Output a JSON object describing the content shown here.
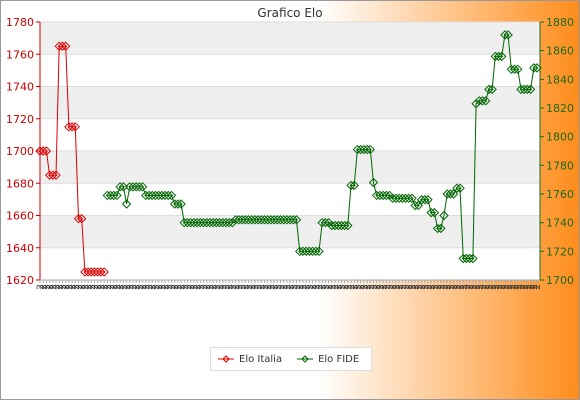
{
  "chart_data": {
    "type": "line",
    "title": "Grafico Elo",
    "grid": true,
    "legend_position": "bottom",
    "colors": {
      "elo_italia": "#dd0000",
      "elo_fide": "#006600",
      "left_axis": "#cc0000",
      "right_axis": "#1b6b1b",
      "band": "#efefef",
      "bg_left": "#ffffff",
      "bg_right": "#ff8c1a"
    },
    "x_tick_label_prefix": "2",
    "left_axis": {
      "ylim": [
        1620,
        1780
      ],
      "ticks": [
        1620,
        1640,
        1660,
        1680,
        1700,
        1720,
        1740,
        1760,
        1780
      ]
    },
    "right_axis": {
      "ylim": [
        1700,
        1880
      ],
      "ticks": [
        1700,
        1720,
        1740,
        1760,
        1780,
        1800,
        1820,
        1840,
        1860,
        1880
      ]
    },
    "series": [
      {
        "name": "Elo Italia",
        "axis": "left",
        "points": [
          {
            "x": 0,
            "y": 1700
          },
          {
            "x": 1,
            "y": 1700
          },
          {
            "x": 2,
            "y": 1700
          },
          {
            "x": 3,
            "y": 1685
          },
          {
            "x": 4,
            "y": 1685
          },
          {
            "x": 5,
            "y": 1685
          },
          {
            "x": 6,
            "y": 1765
          },
          {
            "x": 7,
            "y": 1765
          },
          {
            "x": 8,
            "y": 1765
          },
          {
            "x": 9,
            "y": 1715
          },
          {
            "x": 10,
            "y": 1715
          },
          {
            "x": 11,
            "y": 1715
          },
          {
            "x": 12,
            "y": 1658
          },
          {
            "x": 13,
            "y": 1658
          },
          {
            "x": 14,
            "y": 1625
          },
          {
            "x": 15,
            "y": 1625
          },
          {
            "x": 16,
            "y": 1625
          },
          {
            "x": 17,
            "y": 1625
          },
          {
            "x": 18,
            "y": 1625
          },
          {
            "x": 19,
            "y": 1625
          },
          {
            "x": 20,
            "y": 1625
          }
        ]
      },
      {
        "name": "Elo FIDE",
        "axis": "right",
        "points": [
          {
            "x": 21,
            "y": 1759
          },
          {
            "x": 22,
            "y": 1759
          },
          {
            "x": 23,
            "y": 1759
          },
          {
            "x": 24,
            "y": 1759
          },
          {
            "x": 25,
            "y": 1765
          },
          {
            "x": 26,
            "y": 1765
          },
          {
            "x": 27,
            "y": 1753
          },
          {
            "x": 28,
            "y": 1765
          },
          {
            "x": 29,
            "y": 1765
          },
          {
            "x": 30,
            "y": 1765
          },
          {
            "x": 31,
            "y": 1765
          },
          {
            "x": 32,
            "y": 1765
          },
          {
            "x": 33,
            "y": 1759
          },
          {
            "x": 34,
            "y": 1759
          },
          {
            "x": 35,
            "y": 1759
          },
          {
            "x": 36,
            "y": 1759
          },
          {
            "x": 37,
            "y": 1759
          },
          {
            "x": 38,
            "y": 1759
          },
          {
            "x": 39,
            "y": 1759
          },
          {
            "x": 40,
            "y": 1759
          },
          {
            "x": 41,
            "y": 1759
          },
          {
            "x": 42,
            "y": 1753
          },
          {
            "x": 43,
            "y": 1753
          },
          {
            "x": 44,
            "y": 1753
          },
          {
            "x": 45,
            "y": 1740
          },
          {
            "x": 46,
            "y": 1740
          },
          {
            "x": 47,
            "y": 1740
          },
          {
            "x": 48,
            "y": 1740
          },
          {
            "x": 49,
            "y": 1740
          },
          {
            "x": 50,
            "y": 1740
          },
          {
            "x": 51,
            "y": 1740
          },
          {
            "x": 52,
            "y": 1740
          },
          {
            "x": 53,
            "y": 1740
          },
          {
            "x": 54,
            "y": 1740
          },
          {
            "x": 55,
            "y": 1740
          },
          {
            "x": 56,
            "y": 1740
          },
          {
            "x": 57,
            "y": 1740
          },
          {
            "x": 58,
            "y": 1740
          },
          {
            "x": 59,
            "y": 1740
          },
          {
            "x": 60,
            "y": 1740
          },
          {
            "x": 61,
            "y": 1742
          },
          {
            "x": 62,
            "y": 1742
          },
          {
            "x": 63,
            "y": 1742
          },
          {
            "x": 64,
            "y": 1742
          },
          {
            "x": 65,
            "y": 1742
          },
          {
            "x": 66,
            "y": 1742
          },
          {
            "x": 67,
            "y": 1742
          },
          {
            "x": 68,
            "y": 1742
          },
          {
            "x": 69,
            "y": 1742
          },
          {
            "x": 70,
            "y": 1742
          },
          {
            "x": 71,
            "y": 1742
          },
          {
            "x": 72,
            "y": 1742
          },
          {
            "x": 73,
            "y": 1742
          },
          {
            "x": 74,
            "y": 1742
          },
          {
            "x": 75,
            "y": 1742
          },
          {
            "x": 76,
            "y": 1742
          },
          {
            "x": 77,
            "y": 1742
          },
          {
            "x": 78,
            "y": 1742
          },
          {
            "x": 79,
            "y": 1742
          },
          {
            "x": 80,
            "y": 1742
          },
          {
            "x": 81,
            "y": 1720
          },
          {
            "x": 82,
            "y": 1720
          },
          {
            "x": 83,
            "y": 1720
          },
          {
            "x": 84,
            "y": 1720
          },
          {
            "x": 85,
            "y": 1720
          },
          {
            "x": 86,
            "y": 1720
          },
          {
            "x": 87,
            "y": 1720
          },
          {
            "x": 88,
            "y": 1740
          },
          {
            "x": 89,
            "y": 1740
          },
          {
            "x": 90,
            "y": 1740
          },
          {
            "x": 91,
            "y": 1738
          },
          {
            "x": 92,
            "y": 1738
          },
          {
            "x": 93,
            "y": 1738
          },
          {
            "x": 94,
            "y": 1738
          },
          {
            "x": 95,
            "y": 1738
          },
          {
            "x": 96,
            "y": 1738
          },
          {
            "x": 97,
            "y": 1766
          },
          {
            "x": 98,
            "y": 1766
          },
          {
            "x": 99,
            "y": 1791
          },
          {
            "x": 100,
            "y": 1791
          },
          {
            "x": 101,
            "y": 1791
          },
          {
            "x": 102,
            "y": 1791
          },
          {
            "x": 103,
            "y": 1791
          },
          {
            "x": 104,
            "y": 1768
          },
          {
            "x": 105,
            "y": 1759
          },
          {
            "x": 106,
            "y": 1759
          },
          {
            "x": 107,
            "y": 1759
          },
          {
            "x": 108,
            "y": 1759
          },
          {
            "x": 109,
            "y": 1759
          },
          {
            "x": 110,
            "y": 1757
          },
          {
            "x": 111,
            "y": 1757
          },
          {
            "x": 112,
            "y": 1757
          },
          {
            "x": 113,
            "y": 1757
          },
          {
            "x": 114,
            "y": 1757
          },
          {
            "x": 115,
            "y": 1757
          },
          {
            "x": 116,
            "y": 1757
          },
          {
            "x": 117,
            "y": 1752
          },
          {
            "x": 118,
            "y": 1752
          },
          {
            "x": 119,
            "y": 1756
          },
          {
            "x": 120,
            "y": 1756
          },
          {
            "x": 121,
            "y": 1756
          },
          {
            "x": 122,
            "y": 1747
          },
          {
            "x": 123,
            "y": 1747
          },
          {
            "x": 124,
            "y": 1736
          },
          {
            "x": 125,
            "y": 1736
          },
          {
            "x": 126,
            "y": 1745
          },
          {
            "x": 127,
            "y": 1760
          },
          {
            "x": 128,
            "y": 1760
          },
          {
            "x": 129,
            "y": 1760
          },
          {
            "x": 130,
            "y": 1764
          },
          {
            "x": 131,
            "y": 1764
          },
          {
            "x": 132,
            "y": 1715
          },
          {
            "x": 133,
            "y": 1715
          },
          {
            "x": 134,
            "y": 1715
          },
          {
            "x": 135,
            "y": 1715
          },
          {
            "x": 136,
            "y": 1823
          },
          {
            "x": 137,
            "y": 1825
          },
          {
            "x": 138,
            "y": 1825
          },
          {
            "x": 139,
            "y": 1825
          },
          {
            "x": 140,
            "y": 1833
          },
          {
            "x": 141,
            "y": 1833
          },
          {
            "x": 142,
            "y": 1856
          },
          {
            "x": 143,
            "y": 1856
          },
          {
            "x": 144,
            "y": 1856
          },
          {
            "x": 145,
            "y": 1871
          },
          {
            "x": 146,
            "y": 1871
          },
          {
            "x": 147,
            "y": 1847
          },
          {
            "x": 148,
            "y": 1847
          },
          {
            "x": 149,
            "y": 1847
          },
          {
            "x": 150,
            "y": 1833
          },
          {
            "x": 151,
            "y": 1833
          },
          {
            "x": 152,
            "y": 1833
          },
          {
            "x": 153,
            "y": 1833
          },
          {
            "x": 154,
            "y": 1848
          },
          {
            "x": 155,
            "y": 1848
          }
        ]
      }
    ]
  },
  "legend": [
    {
      "name": "Elo Italia",
      "color": "#dd0000"
    },
    {
      "name": "Elo FIDE",
      "color": "#006600"
    }
  ]
}
